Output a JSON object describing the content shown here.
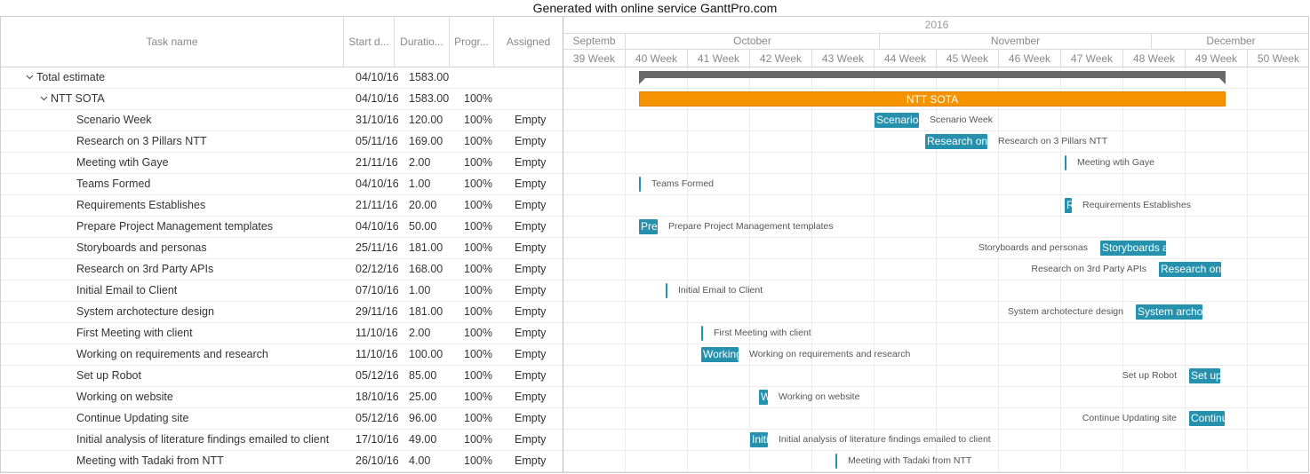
{
  "banner": "Generated with online service GanttPro.com",
  "columns": {
    "task_name": "Task name",
    "start": "Start d...",
    "duration": "Duratio...",
    "progress": "Progr...",
    "assigned": "Assigned"
  },
  "timeline": {
    "year": "2016",
    "months": [
      "Septemb",
      "October",
      "November",
      "December"
    ],
    "weeks": [
      "39 Week",
      "40 Week",
      "41 Week",
      "42 Week",
      "43 Week",
      "44 Week",
      "45 Week",
      "46 Week",
      "47 Week",
      "48 Week",
      "49 Week",
      "50 Week"
    ]
  },
  "colors": {
    "task_bar": "#2591ad",
    "project_bar": "#f59300",
    "summary_bar": "#6a6a6a"
  },
  "rows": [
    {
      "name": "Total estimate",
      "start": "04/10/16",
      "duration": "1583.00",
      "progress": "",
      "assigned": "",
      "level": 0,
      "type": "summary",
      "bar_label": ""
    },
    {
      "name": "NTT SOTA",
      "start": "04/10/16",
      "duration": "1583.00",
      "progress": "100%",
      "assigned": "",
      "level": 1,
      "type": "project",
      "bar_label": "NTT SOTA"
    },
    {
      "name": "Scenario Week",
      "start": "31/10/16",
      "duration": "120.00",
      "progress": "100%",
      "assigned": "Empty",
      "level": 2,
      "type": "task",
      "bar_label": "Scenario Week"
    },
    {
      "name": "Research on 3 Pillars NTT",
      "start": "05/11/16",
      "duration": "169.00",
      "progress": "100%",
      "assigned": "Empty",
      "level": 2,
      "type": "task",
      "bar_label": "Research on 3 Pillars NTT"
    },
    {
      "name": "Meeting wtih Gaye",
      "start": "21/11/16",
      "duration": "2.00",
      "progress": "100%",
      "assigned": "Empty",
      "level": 2,
      "type": "milestone",
      "bar_label": "Meeting wtih Gaye"
    },
    {
      "name": "Teams Formed",
      "start": "04/10/16",
      "duration": "1.00",
      "progress": "100%",
      "assigned": "Empty",
      "level": 2,
      "type": "milestone",
      "bar_label": "Teams Formed"
    },
    {
      "name": "Requirements Establishes",
      "start": "21/11/16",
      "duration": "20.00",
      "progress": "100%",
      "assigned": "Empty",
      "level": 2,
      "type": "task",
      "bar_label": "Requirements Establishes"
    },
    {
      "name": "Prepare Project Management templates",
      "start": "04/10/16",
      "duration": "50.00",
      "progress": "100%",
      "assigned": "Empty",
      "level": 2,
      "type": "task",
      "bar_label": "Prepare Project Management templates"
    },
    {
      "name": "Storyboards and personas",
      "start": "25/11/16",
      "duration": "181.00",
      "progress": "100%",
      "assigned": "Empty",
      "level": 2,
      "type": "task",
      "bar_label": "Storyboards and personas"
    },
    {
      "name": "Research on 3rd Party APIs",
      "start": "02/12/16",
      "duration": "168.00",
      "progress": "100%",
      "assigned": "Empty",
      "level": 2,
      "type": "task",
      "bar_label": "Research on 3rd Party APIs"
    },
    {
      "name": "Initial Email to Client",
      "start": "07/10/16",
      "duration": "1.00",
      "progress": "100%",
      "assigned": "Empty",
      "level": 2,
      "type": "milestone",
      "bar_label": "Initial Email to Client"
    },
    {
      "name": "System archotecture design",
      "start": "29/11/16",
      "duration": "181.00",
      "progress": "100%",
      "assigned": "Empty",
      "level": 2,
      "type": "task",
      "bar_label": "System archotecture design"
    },
    {
      "name": "First Meeting with client",
      "start": "11/10/16",
      "duration": "2.00",
      "progress": "100%",
      "assigned": "Empty",
      "level": 2,
      "type": "milestone",
      "bar_label": "First Meeting with client"
    },
    {
      "name": "Working on requirements and research",
      "start": "11/10/16",
      "duration": "100.00",
      "progress": "100%",
      "assigned": "Empty",
      "level": 2,
      "type": "task",
      "bar_label": "Working on requirements and research"
    },
    {
      "name": "Set up Robot",
      "start": "05/12/16",
      "duration": "85.00",
      "progress": "100%",
      "assigned": "Empty",
      "level": 2,
      "type": "task",
      "bar_label": "Set up Robot"
    },
    {
      "name": "Working on website",
      "start": "18/10/16",
      "duration": "25.00",
      "progress": "100%",
      "assigned": "Empty",
      "level": 2,
      "type": "task",
      "bar_label": "Working on website"
    },
    {
      "name": "Continue Updating site",
      "start": "05/12/16",
      "duration": "96.00",
      "progress": "100%",
      "assigned": "Empty",
      "level": 2,
      "type": "task",
      "bar_label": "Continue Updating site"
    },
    {
      "name": "Initial analysis of literature findings emailed to client",
      "start": "17/10/16",
      "duration": "49.00",
      "progress": "100%",
      "assigned": "Empty",
      "level": 2,
      "type": "task",
      "bar_label": "Initial analysis of literature findings emailed to client"
    },
    {
      "name": "Meeting with Tadaki from NTT",
      "start": "26/10/16",
      "duration": "4.00",
      "progress": "100%",
      "assigned": "Empty",
      "level": 2,
      "type": "milestone",
      "bar_label": "Meeting with Tadaki from NTT"
    }
  ]
}
